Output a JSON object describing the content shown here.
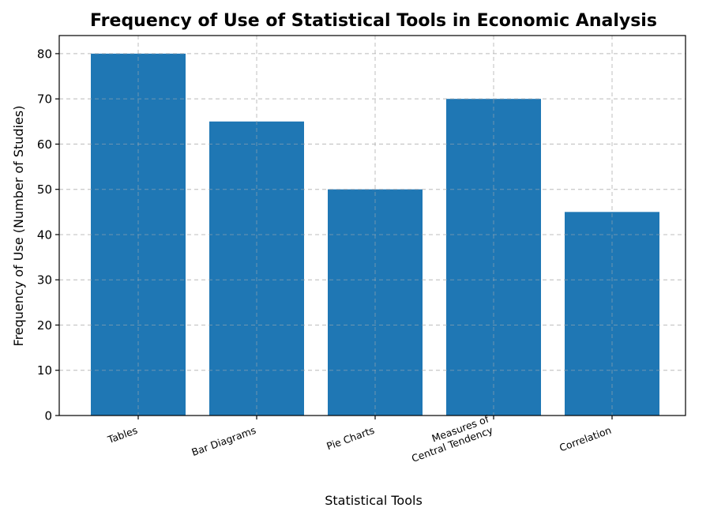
{
  "chart_data": {
    "type": "bar",
    "title": "Frequency of Use of Statistical Tools in Economic Analysis",
    "xlabel": "Statistical Tools",
    "ylabel": "Frequency of Use (Number of Studies)",
    "categories": [
      [
        "Tables"
      ],
      [
        "Bar Diagrams"
      ],
      [
        "Pie Charts"
      ],
      [
        "Measures of",
        "Central Tendency"
      ],
      [
        "Correlation"
      ]
    ],
    "values": [
      80,
      65,
      50,
      70,
      45
    ],
    "ylim": [
      0,
      84
    ],
    "yticks": [
      "0",
      "10",
      "20",
      "30",
      "40",
      "50",
      "60",
      "70",
      "80"
    ],
    "grid": true,
    "bar_color": "#1f77b4"
  }
}
